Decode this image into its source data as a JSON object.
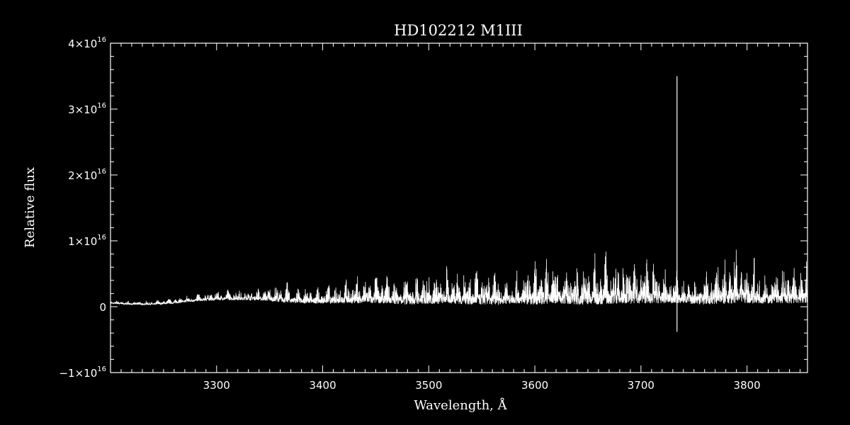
{
  "chart_data": {
    "type": "line",
    "title": "HD102212   M1III",
    "xlabel": "Wavelength, Å",
    "ylabel": "Relative flux",
    "xlim": [
      3200,
      3857
    ],
    "ylim": [
      -1e+16,
      4e+16
    ],
    "grid": false,
    "legend": "none",
    "x_ticks": [
      {
        "value": 3300,
        "label": "3300"
      },
      {
        "value": 3400,
        "label": "3400"
      },
      {
        "value": 3500,
        "label": "3500"
      },
      {
        "value": 3600,
        "label": "3600"
      },
      {
        "value": 3700,
        "label": "3700"
      },
      {
        "value": 3800,
        "label": "3800"
      }
    ],
    "y_ticks": [
      {
        "value": 4e+16,
        "mantissa": "4×10",
        "exp": "16"
      },
      {
        "value": 3e+16,
        "mantissa": "3×10",
        "exp": "16"
      },
      {
        "value": 2e+16,
        "mantissa": "2×10",
        "exp": "16"
      },
      {
        "value": 1e+16,
        "mantissa": "1×10",
        "exp": "16"
      },
      {
        "value": 0,
        "mantissa": "0",
        "exp": ""
      },
      {
        "value": -1e+16,
        "mantissa": "−1×10",
        "exp": "16"
      }
    ],
    "series": [
      {
        "color": "#ffffff",
        "envelope": {
          "x": [
            3200,
            3220,
            3240,
            3260,
            3280,
            3300,
            3320,
            3340,
            3360,
            3380,
            3400,
            3420,
            3440,
            3460,
            3480,
            3500,
            3520,
            3540,
            3560,
            3580,
            3600,
            3620,
            3640,
            3660,
            3680,
            3700,
            3720,
            3740,
            3760,
            3780,
            3800,
            3820,
            3840,
            3857
          ],
          "lower": [
            0.05,
            0.03,
            0.03,
            0.05,
            0.08,
            0.1,
            0.1,
            0.1,
            0.07,
            0.05,
            0.05,
            0.05,
            0.05,
            0.05,
            0.03,
            0.04,
            0.05,
            0.03,
            0.03,
            0.05,
            0.03,
            0.05,
            0.03,
            0.03,
            0.05,
            0.05,
            0.05,
            0.05,
            0.03,
            0.05,
            0.05,
            0.05,
            0.05,
            0.05
          ],
          "upper": [
            0.1,
            0.1,
            0.1,
            0.15,
            0.22,
            0.28,
            0.3,
            0.3,
            0.4,
            0.35,
            0.38,
            0.5,
            0.55,
            0.55,
            0.6,
            0.62,
            0.65,
            0.7,
            0.65,
            0.55,
            0.78,
            0.8,
            0.8,
            0.92,
            0.92,
            0.9,
            0.7,
            0.6,
            0.65,
            0.95,
            0.95,
            0.6,
            0.8,
            0.85
          ],
          "scale": 1e+16
        },
        "spike": {
          "x": 3734,
          "top": 3.5e+16,
          "bottom": -3800000000000000.0
        }
      }
    ]
  }
}
